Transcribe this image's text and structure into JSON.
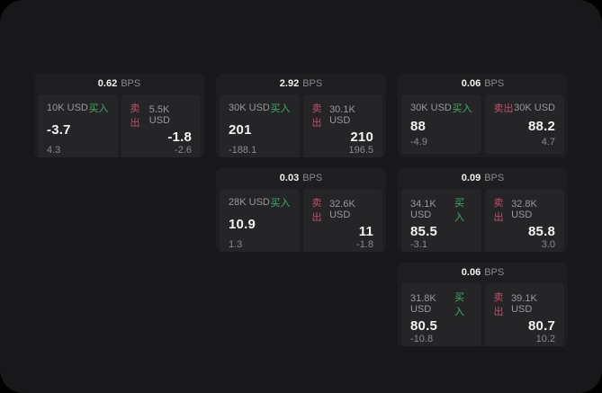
{
  "theme": {
    "page_bg": "#18181a",
    "card_bg": "#1e1e20",
    "panel_bg": "#252528",
    "text_primary": "#f2f2f3",
    "text_muted": "#98989d",
    "text_dim": "#8a8a8e",
    "buy_green": "#3fae63",
    "sell_red": "#c14f63"
  },
  "labels": {
    "buy": "买入",
    "sell": "卖出",
    "bps_unit": "BPS"
  },
  "cards": [
    {
      "bps": "0.62",
      "buy": {
        "amount": "10K USD",
        "value": "-3.7",
        "sub": "4.3"
      },
      "sell": {
        "amount": "5.5K USD",
        "value": "-1.8",
        "sub": "-2.6"
      }
    },
    {
      "bps": "2.92",
      "buy": {
        "amount": "30K USD",
        "value": "201",
        "sub": "-188.1"
      },
      "sell": {
        "amount": "30.1K USD",
        "value": "210",
        "sub": "196.5"
      }
    },
    {
      "bps": "0.06",
      "buy": {
        "amount": "30K USD",
        "value": "88",
        "sub": "-4.9"
      },
      "sell": {
        "amount": "30K USD",
        "value": "88.2",
        "sub": "4.7"
      }
    },
    {
      "bps": "0.03",
      "buy": {
        "amount": "28K USD",
        "value": "10.9",
        "sub": "1.3"
      },
      "sell": {
        "amount": "32.6K USD",
        "value": "11",
        "sub": "-1.8"
      }
    },
    {
      "bps": "0.09",
      "buy": {
        "amount": "34.1K USD",
        "value": "85.5",
        "sub": "-3.1"
      },
      "sell": {
        "amount": "32.8K USD",
        "value": "85.8",
        "sub": "3.0"
      }
    },
    {
      "bps": "0.06",
      "buy": {
        "amount": "31.8K USD",
        "value": "80.5",
        "sub": "-10.8"
      },
      "sell": {
        "amount": "39.1K USD",
        "value": "80.7",
        "sub": "10.2"
      }
    }
  ]
}
